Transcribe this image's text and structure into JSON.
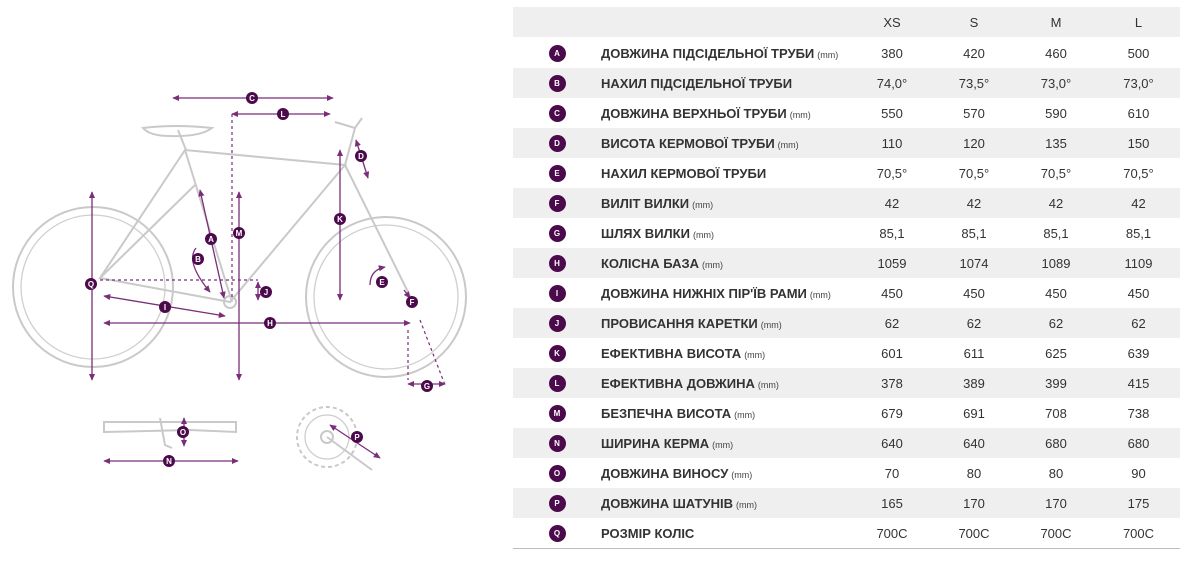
{
  "table": {
    "sizes": [
      "XS",
      "S",
      "M",
      "L"
    ],
    "rows": [
      {
        "letter": "A",
        "name": "Довжина підсідельної труби",
        "unit": "(mm)",
        "values": [
          "380",
          "420",
          "460",
          "500"
        ]
      },
      {
        "letter": "B",
        "name": "Нахил підсідельної труби",
        "unit": "",
        "values": [
          "74,0°",
          "73,5°",
          "73,0°",
          "73,0°"
        ]
      },
      {
        "letter": "C",
        "name": "Довжина верхньої труби",
        "unit": "(mm)",
        "values": [
          "550",
          "570",
          "590",
          "610"
        ]
      },
      {
        "letter": "D",
        "name": "Висота кермової труби",
        "unit": "(mm)",
        "values": [
          "110",
          "120",
          "135",
          "150"
        ]
      },
      {
        "letter": "E",
        "name": "Нахил кермової труби",
        "unit": "",
        "values": [
          "70,5°",
          "70,5°",
          "70,5°",
          "70,5°"
        ]
      },
      {
        "letter": "F",
        "name": "Виліт вилки",
        "unit": "(mm)",
        "values": [
          "42",
          "42",
          "42",
          "42"
        ]
      },
      {
        "letter": "G",
        "name": "Шлях вилки",
        "unit": "(mm)",
        "values": [
          "85,1",
          "85,1",
          "85,1",
          "85,1"
        ]
      },
      {
        "letter": "H",
        "name": "Колісна база",
        "unit": "(mm)",
        "values": [
          "1059",
          "1074",
          "1089",
          "1109"
        ]
      },
      {
        "letter": "I",
        "name": "Довжина нижніх пір'їв рами",
        "unit": "(mm)",
        "values": [
          "450",
          "450",
          "450",
          "450"
        ]
      },
      {
        "letter": "J",
        "name": "Провисання каретки",
        "unit": "(mm)",
        "values": [
          "62",
          "62",
          "62",
          "62"
        ]
      },
      {
        "letter": "K",
        "name": "Ефективна висота",
        "unit": "(mm)",
        "values": [
          "601",
          "611",
          "625",
          "639"
        ]
      },
      {
        "letter": "L",
        "name": "Ефективна довжина",
        "unit": "(mm)",
        "values": [
          "378",
          "389",
          "399",
          "415"
        ]
      },
      {
        "letter": "M",
        "name": "Безпечна висота",
        "unit": "(mm)",
        "values": [
          "679",
          "691",
          "708",
          "738"
        ]
      },
      {
        "letter": "N",
        "name": "Ширина керма",
        "unit": "(mm)",
        "values": [
          "640",
          "640",
          "680",
          "680"
        ]
      },
      {
        "letter": "O",
        "name": "Довжина виносу",
        "unit": "(mm)",
        "values": [
          "70",
          "80",
          "80",
          "90"
        ]
      },
      {
        "letter": "P",
        "name": "Довжина шатунів",
        "unit": "(mm)",
        "values": [
          "165",
          "170",
          "170",
          "175"
        ]
      },
      {
        "letter": "Q",
        "name": "Розмір коліс",
        "unit": "",
        "values": [
          "700C",
          "700C",
          "700C",
          "700C"
        ]
      }
    ]
  },
  "diagram": {
    "markers": [
      "A",
      "B",
      "C",
      "D",
      "E",
      "F",
      "G",
      "H",
      "I",
      "J",
      "K",
      "L",
      "M",
      "N",
      "O",
      "P",
      "Q"
    ],
    "accent_color": "#4b0a4b",
    "line_color": "#7a2e7a"
  }
}
